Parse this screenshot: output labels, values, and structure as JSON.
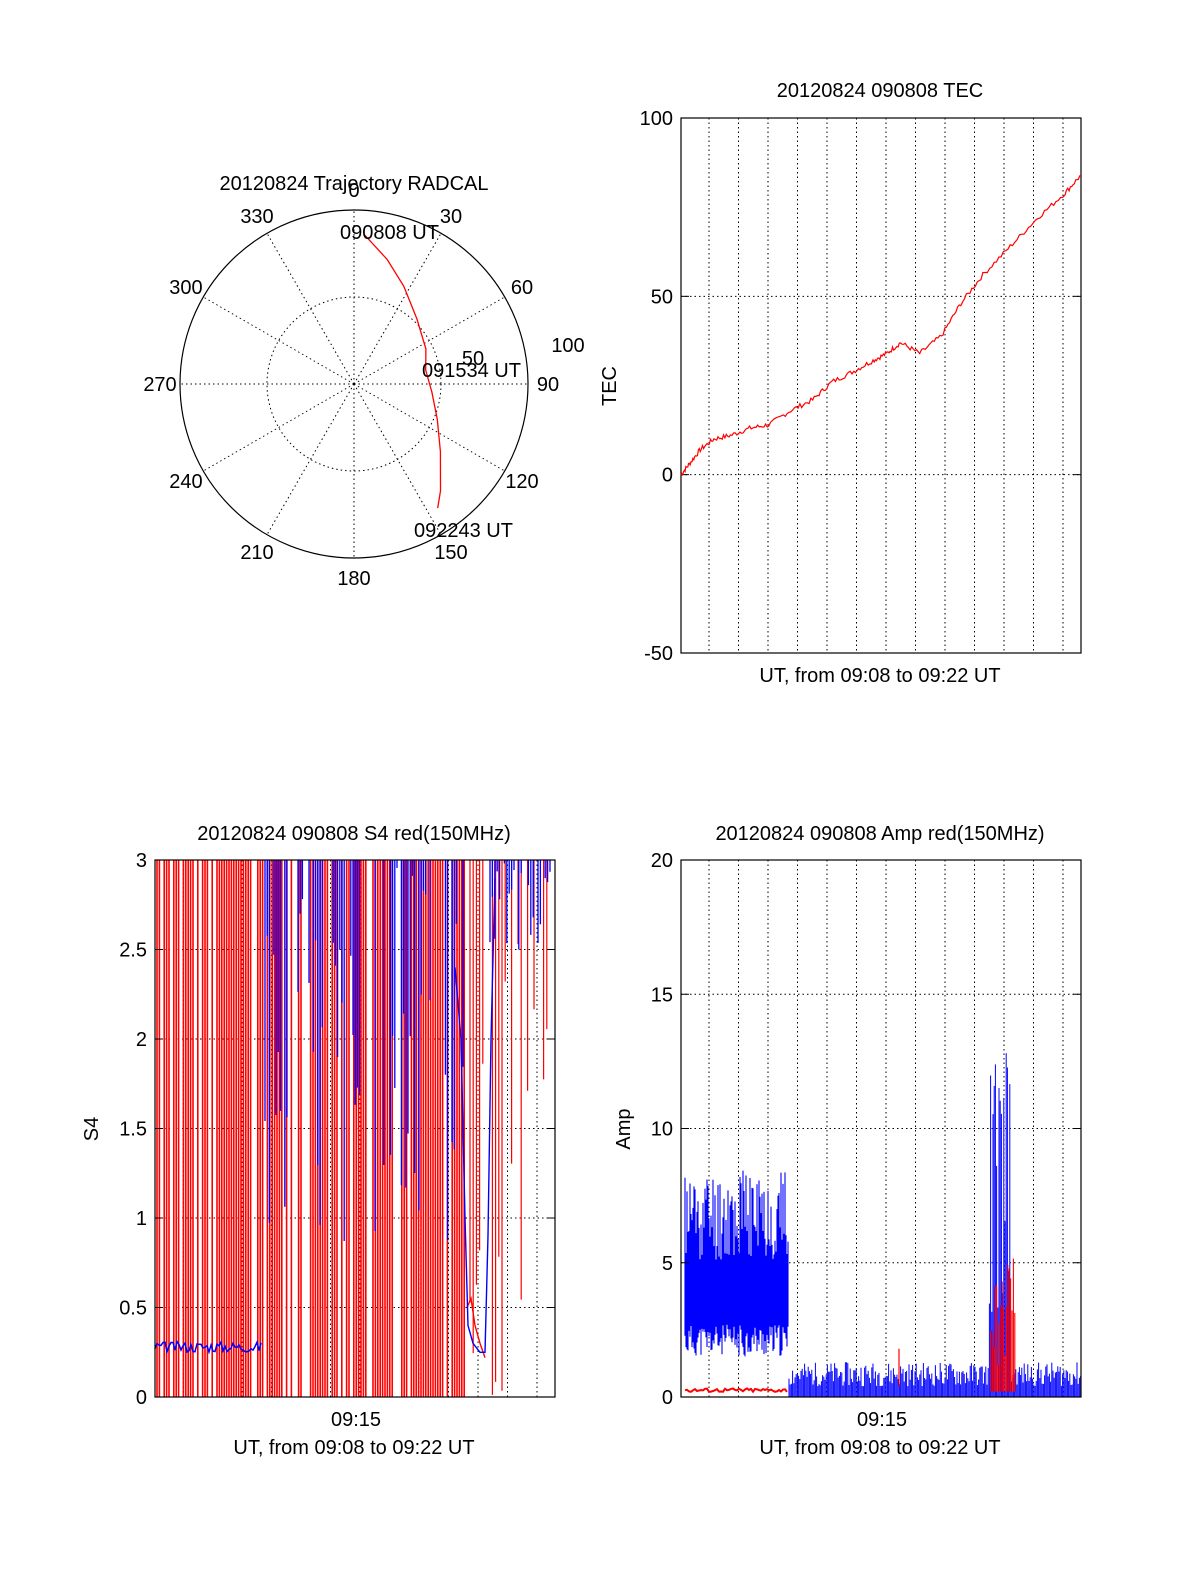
{
  "chart_data": [
    {
      "type": "polar",
      "title": "20120824 Trajectory RADCAL",
      "angle_labels": [
        "0",
        "30",
        "60",
        "90",
        "120",
        "150",
        "180",
        "210",
        "240",
        "270",
        "300",
        "330"
      ],
      "radius_labels": [
        "50",
        "100"
      ],
      "rlim": [
        0,
        100
      ],
      "trajectory": {
        "color": "#ff0000",
        "points": [
          {
            "az": 4,
            "r": 86
          },
          {
            "az": 15,
            "r": 74
          },
          {
            "az": 27,
            "r": 63
          },
          {
            "az": 44,
            "r": 52
          },
          {
            "az": 64,
            "r": 46
          },
          {
            "az": 79,
            "r": 42
          },
          {
            "az": 96,
            "r": 45
          },
          {
            "az": 113,
            "r": 52
          },
          {
            "az": 128,
            "r": 63
          },
          {
            "az": 141,
            "r": 79
          },
          {
            "az": 146,
            "r": 86
          }
        ]
      },
      "annotations": [
        {
          "text": "090808 UT",
          "az": 4,
          "r": 86
        },
        {
          "text": "091534 UT",
          "az": 79,
          "r": 42
        },
        {
          "text": "092243 UT",
          "az": 146,
          "r": 86
        }
      ]
    },
    {
      "type": "line",
      "title": "20120824 090808 TEC",
      "xlabel": "UT, from 09:08 to 09:22 UT",
      "ylabel": "TEC",
      "ylim": [
        -50,
        100
      ],
      "yticks": [
        "100",
        "50",
        "0",
        "-50"
      ],
      "xlim": [
        0,
        14.58
      ],
      "grid": true,
      "series": [
        {
          "color": "#ff0000",
          "x": [
            0,
            0.3,
            0.7,
            1.2,
            1.8,
            2.5,
            3.2,
            4.0,
            4.8,
            5.5,
            6.3,
            7.0,
            7.5,
            8.0,
            8.7,
            9.5,
            10.2,
            11.0,
            12.0,
            13.0,
            14.0,
            14.58
          ],
          "y": [
            0,
            3,
            7,
            10,
            11,
            13,
            14,
            18,
            21,
            26,
            29,
            32,
            34,
            37,
            34,
            39,
            48,
            56,
            64,
            72,
            79,
            84
          ]
        }
      ]
    },
    {
      "type": "line",
      "title": "20120824 090808 S4 red(150MHz)",
      "xlabel": "UT, from 09:08 to 09:22 UT",
      "ylabel": "S4",
      "xtick_labels": [
        "09:15"
      ],
      "ylim": [
        0,
        3
      ],
      "yticks": [
        "3",
        "2.5",
        "2",
        "1.5",
        "1",
        "0.5",
        "0"
      ],
      "xlim": [
        0,
        14.58
      ],
      "grid": true,
      "series": [
        {
          "color": "#ff0000",
          "x": [],
          "y": []
        },
        {
          "color": "#0000ff",
          "x": [],
          "y": []
        }
      ]
    },
    {
      "type": "line",
      "title": "20120824 090808 Amp red(150MHz)",
      "xlabel": "UT, from 09:08 to 09:22 UT",
      "ylabel": "Amp",
      "xtick_labels": [
        "09:15"
      ],
      "ylim": [
        0,
        20
      ],
      "yticks": [
        "20",
        "15",
        "10",
        "5",
        "0"
      ],
      "xlim": [
        0,
        14.58
      ],
      "grid": true,
      "series": [
        {
          "color": "#0000ff",
          "x": [],
          "y": []
        },
        {
          "color": "#ff0000",
          "x": [],
          "y": []
        }
      ]
    }
  ]
}
